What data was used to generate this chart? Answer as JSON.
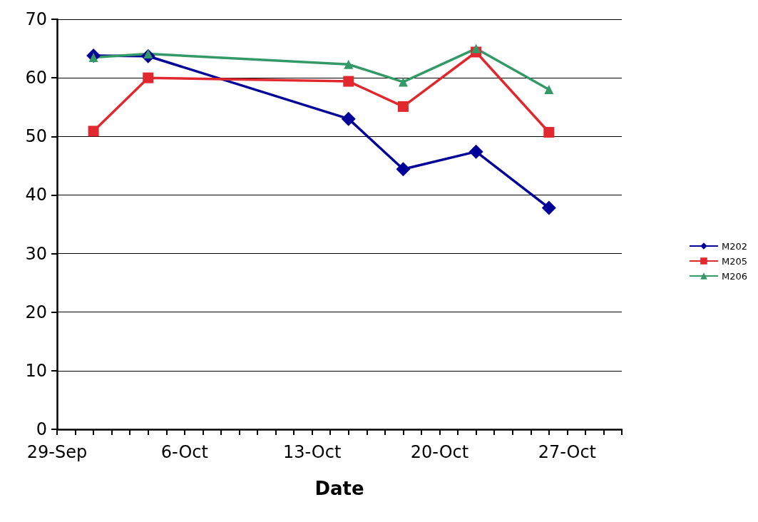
{
  "chart_data": {
    "type": "line",
    "xlabel": "Date",
    "xlim": [
      "--09-29",
      "--10-30"
    ],
    "xticks": [
      {
        "value": "--09-29",
        "label": "29-Sep"
      },
      {
        "value": "--09-30",
        "label": null
      },
      {
        "value": "--10-01",
        "label": null
      },
      {
        "value": "--10-02",
        "label": null
      },
      {
        "value": "--10-03",
        "label": null
      },
      {
        "value": "--10-04",
        "label": null
      },
      {
        "value": "--10-05",
        "label": null
      },
      {
        "value": "--10-06",
        "label": "6-Oct"
      },
      {
        "value": "--10-07",
        "label": null
      },
      {
        "value": "--10-08",
        "label": null
      },
      {
        "value": "--10-09",
        "label": null
      },
      {
        "value": "--10-10",
        "label": null
      },
      {
        "value": "--10-11",
        "label": null
      },
      {
        "value": "--10-12",
        "label": null
      },
      {
        "value": "--10-13",
        "label": "13-Oct"
      },
      {
        "value": "--10-14",
        "label": null
      },
      {
        "value": "--10-15",
        "label": null
      },
      {
        "value": "--10-16",
        "label": null
      },
      {
        "value": "--10-17",
        "label": null
      },
      {
        "value": "--10-18",
        "label": null
      },
      {
        "value": "--10-19",
        "label": null
      },
      {
        "value": "--10-20",
        "label": "20-Oct"
      },
      {
        "value": "--10-21",
        "label": null
      },
      {
        "value": "--10-22",
        "label": null
      },
      {
        "value": "--10-23",
        "label": null
      },
      {
        "value": "--10-24",
        "label": null
      },
      {
        "value": "--10-25",
        "label": null
      },
      {
        "value": "--10-26",
        "label": null
      },
      {
        "value": "--10-27",
        "label": "27-Oct"
      },
      {
        "value": "--10-28",
        "label": null
      },
      {
        "value": "--10-29",
        "label": null
      },
      {
        "value": "--10-30",
        "label": null
      }
    ],
    "ylim": [
      0,
      70
    ],
    "yticks": [
      0,
      10,
      20,
      30,
      40,
      50,
      60,
      70
    ],
    "grid": "y",
    "legend": "right",
    "line_style": "solid",
    "x": [
      "--10-01",
      "--10-04",
      "--10-15",
      "--10-18",
      "--10-22",
      "--10-26"
    ],
    "series": [
      {
        "name": "M202",
        "color": "#000099",
        "marker": "diamond",
        "values": [
          63.8,
          63.7,
          53.0,
          44.4,
          47.4,
          37.8
        ]
      },
      {
        "name": "M205",
        "color": "#e0282e",
        "marker": "square",
        "values": [
          50.9,
          60.0,
          59.4,
          55.1,
          64.4,
          50.7
        ]
      },
      {
        "name": "M206",
        "color": "#339966",
        "marker": "triangle",
        "values": [
          63.5,
          64.1,
          62.3,
          59.3,
          65.0,
          58.0
        ]
      }
    ]
  }
}
